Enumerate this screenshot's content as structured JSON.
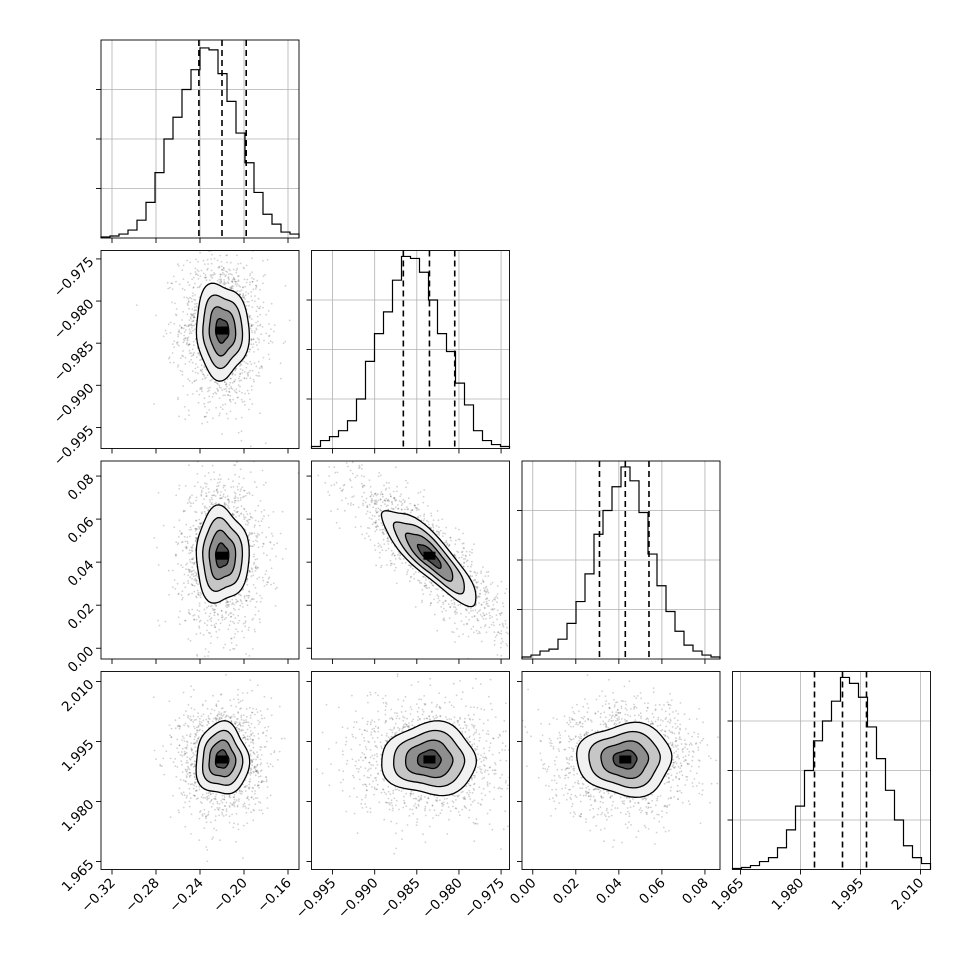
{
  "chart_data": {
    "type": "corner",
    "grid": true,
    "params": [
      {
        "mean": -0.22,
        "std": 0.012,
        "range": [
          -0.33,
          -0.15
        ],
        "ticks": [
          -0.32,
          -0.28,
          -0.24,
          -0.2,
          -0.16
        ],
        "tick_labels": [
          "−0.32",
          "−0.28",
          "−0.24",
          "−0.20",
          "−0.16"
        ],
        "quantiles": [
          -0.241,
          -0.22,
          -0.198
        ]
      },
      {
        "mean": -0.9835,
        "std": 0.0028,
        "range": [
          -0.9975,
          -0.974
        ],
        "ticks": [
          -0.995,
          -0.99,
          -0.985,
          -0.98,
          -0.975
        ],
        "tick_labels": [
          "−0.995",
          "−0.990",
          "−0.985",
          "−0.980",
          "−0.975"
        ],
        "quantiles": [
          -0.9866,
          -0.9835,
          -0.9805
        ]
      },
      {
        "mean": 0.043,
        "std": 0.011,
        "range": [
          -0.005,
          0.087
        ],
        "ticks": [
          0.0,
          0.02,
          0.04,
          0.06,
          0.08
        ],
        "tick_labels": [
          "0.00",
          "0.02",
          "0.04",
          "0.06",
          "0.08"
        ],
        "quantiles": [
          0.031,
          0.043,
          0.054
        ]
      },
      {
        "mean": 1.9905,
        "std": 0.0045,
        "range": [
          1.963,
          2.0125
        ],
        "ticks": [
          1.965,
          1.98,
          1.995,
          2.01
        ],
        "tick_labels": [
          "1.965",
          "1.980",
          "1.995",
          "2.010"
        ],
        "quantiles": [
          1.9835,
          1.9905,
          1.9965
        ]
      }
    ],
    "histograms": [
      {
        "param": 0,
        "bin_counts": [
          0.005,
          0.01,
          0.02,
          0.04,
          0.09,
          0.18,
          0.33,
          0.5,
          0.61,
          0.75,
          0.85,
          0.96,
          0.95,
          0.83,
          0.69,
          0.53,
          0.38,
          0.23,
          0.12,
          0.07,
          0.03,
          0.02
        ]
      },
      {
        "param": 1,
        "bin_counts": [
          0.01,
          0.04,
          0.06,
          0.09,
          0.14,
          0.25,
          0.44,
          0.58,
          0.69,
          0.85,
          0.97,
          0.96,
          0.89,
          0.75,
          0.58,
          0.49,
          0.33,
          0.22,
          0.09,
          0.04,
          0.02,
          0.01
        ]
      },
      {
        "param": 2,
        "bin_counts": [
          0.01,
          0.02,
          0.04,
          0.05,
          0.1,
          0.18,
          0.29,
          0.43,
          0.63,
          0.75,
          0.87,
          0.97,
          0.9,
          0.74,
          0.53,
          0.37,
          0.24,
          0.14,
          0.07,
          0.04,
          0.02,
          0.01
        ]
      },
      {
        "param": 3,
        "bin_counts": [
          0.005,
          0.01,
          0.02,
          0.04,
          0.06,
          0.11,
          0.2,
          0.32,
          0.5,
          0.65,
          0.75,
          0.85,
          0.97,
          0.94,
          0.87,
          0.72,
          0.56,
          0.4,
          0.25,
          0.12,
          0.06,
          0.03
        ]
      }
    ],
    "pairs": [
      {
        "x": 0,
        "y": 1,
        "correlation": -0.05
      },
      {
        "x": 0,
        "y": 2,
        "correlation": 0.0
      },
      {
        "x": 1,
        "y": 2,
        "correlation": -0.85
      },
      {
        "x": 0,
        "y": 3,
        "correlation": 0.0
      },
      {
        "x": 1,
        "y": 3,
        "correlation": 0.0
      },
      {
        "x": 2,
        "y": 3,
        "correlation": 0.0
      }
    ]
  }
}
